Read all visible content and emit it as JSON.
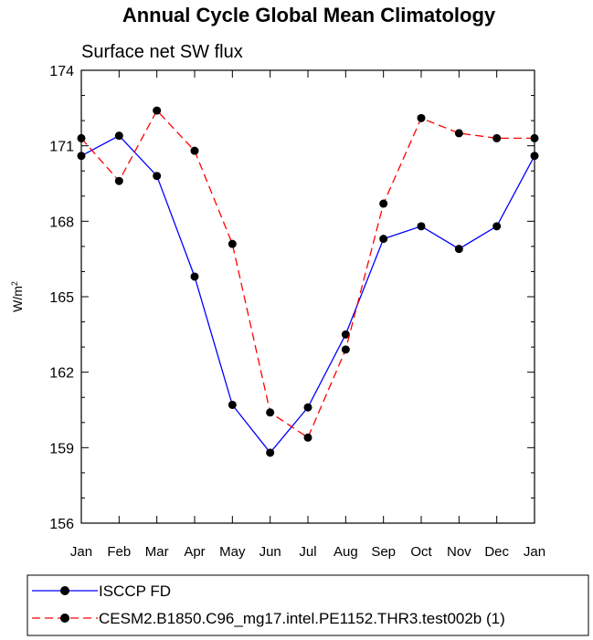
{
  "chart_data": {
    "type": "line",
    "title": "Annual Cycle Global Mean Climatology",
    "subtitle": "Surface net SW flux",
    "xlabel": "",
    "ylabel": "W/m",
    "ylabel_superscript": "2",
    "categories": [
      "Jan",
      "Feb",
      "Mar",
      "Apr",
      "May",
      "Jun",
      "Jul",
      "Aug",
      "Sep",
      "Oct",
      "Nov",
      "Dec",
      "Jan"
    ],
    "ylim": [
      156,
      174
    ],
    "yticks": [
      156,
      159,
      162,
      165,
      168,
      171,
      174
    ],
    "grid": false,
    "legend_position": "bottom",
    "series": [
      {
        "name": "ISCCP FD",
        "color": "#0000ff",
        "style": "solid",
        "values": [
          170.6,
          171.4,
          169.8,
          165.8,
          160.7,
          158.8,
          160.6,
          163.5,
          167.3,
          167.8,
          166.9,
          167.8,
          170.6
        ]
      },
      {
        "name": "CESM2.B1850.C96_mg17.intel.PE1152.THR3.test002b (1)",
        "color": "#ff0000",
        "style": "dashed",
        "values": [
          171.3,
          169.6,
          172.4,
          170.8,
          167.1,
          160.4,
          159.4,
          162.9,
          168.7,
          172.1,
          171.5,
          171.3,
          171.3
        ]
      }
    ]
  }
}
